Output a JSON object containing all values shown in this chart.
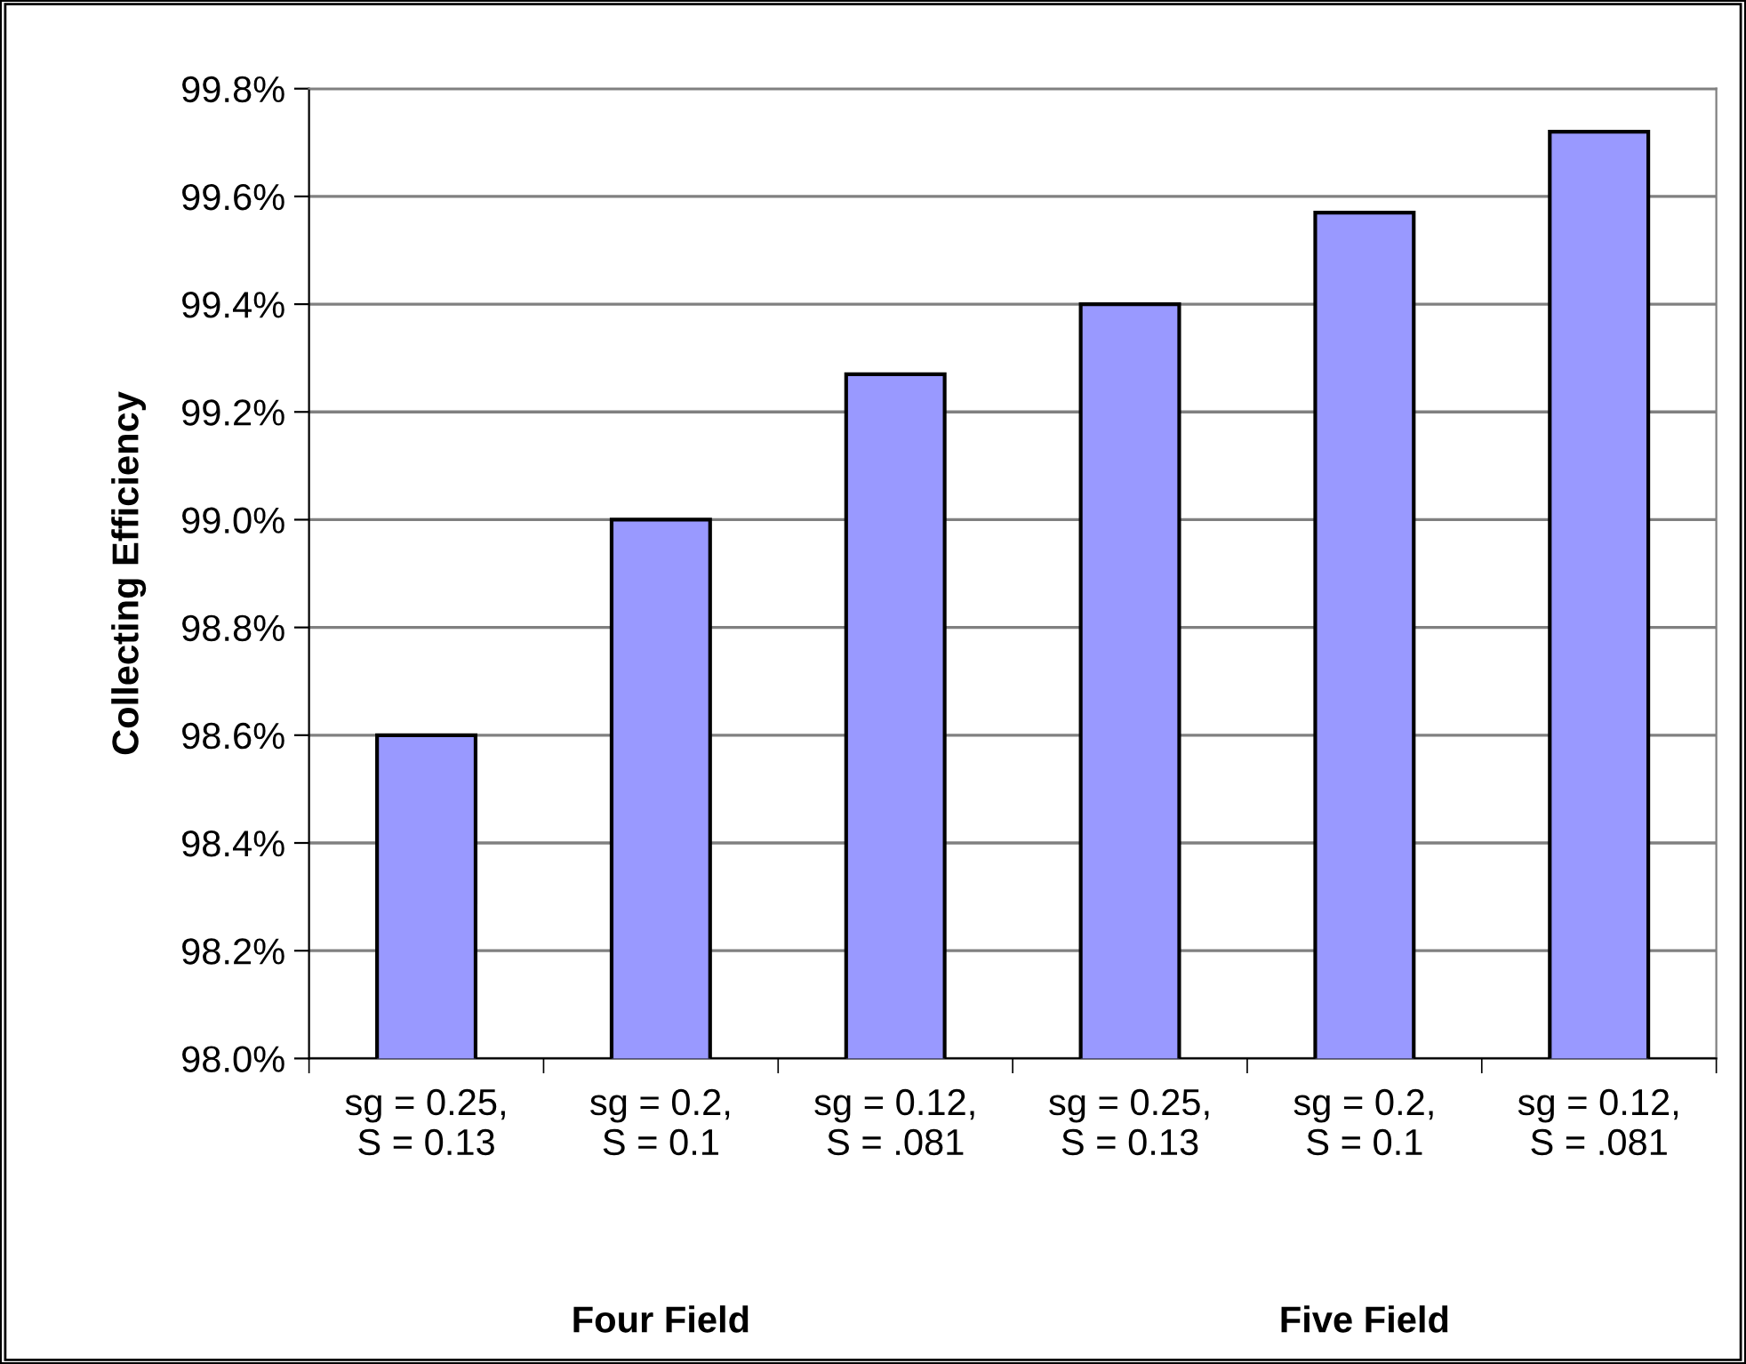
{
  "chart_data": {
    "type": "bar",
    "ylabel": "Collecting Efficiency",
    "categories": [
      "sg = 0.25,\nS = 0.13",
      "sg = 0.2,\nS = 0.1",
      "sg = 0.12,\nS = .081",
      "sg = 0.25,\nS = 0.13",
      "sg = 0.2,\nS = 0.1",
      "sg = 0.12,\nS = .081"
    ],
    "values": [
      98.6,
      99.0,
      99.27,
      99.4,
      99.57,
      99.72
    ],
    "color": "#9999ff",
    "ylim": [
      98.0,
      99.8
    ],
    "yticks": [
      {
        "value": 98.0,
        "label": "98.0%"
      },
      {
        "value": 98.2,
        "label": "98.2%"
      },
      {
        "value": 98.4,
        "label": "98.4%"
      },
      {
        "value": 98.6,
        "label": "98.6%"
      },
      {
        "value": 98.8,
        "label": "98.8%"
      },
      {
        "value": 99.0,
        "label": "99.0%"
      },
      {
        "value": 99.2,
        "label": "99.2%"
      },
      {
        "value": 99.4,
        "label": "99.4%"
      },
      {
        "value": 99.6,
        "label": "99.6%"
      },
      {
        "value": 99.8,
        "label": "99.8%"
      }
    ],
    "grid": "y",
    "annotations": [
      "Four Field",
      "Five Field"
    ]
  }
}
